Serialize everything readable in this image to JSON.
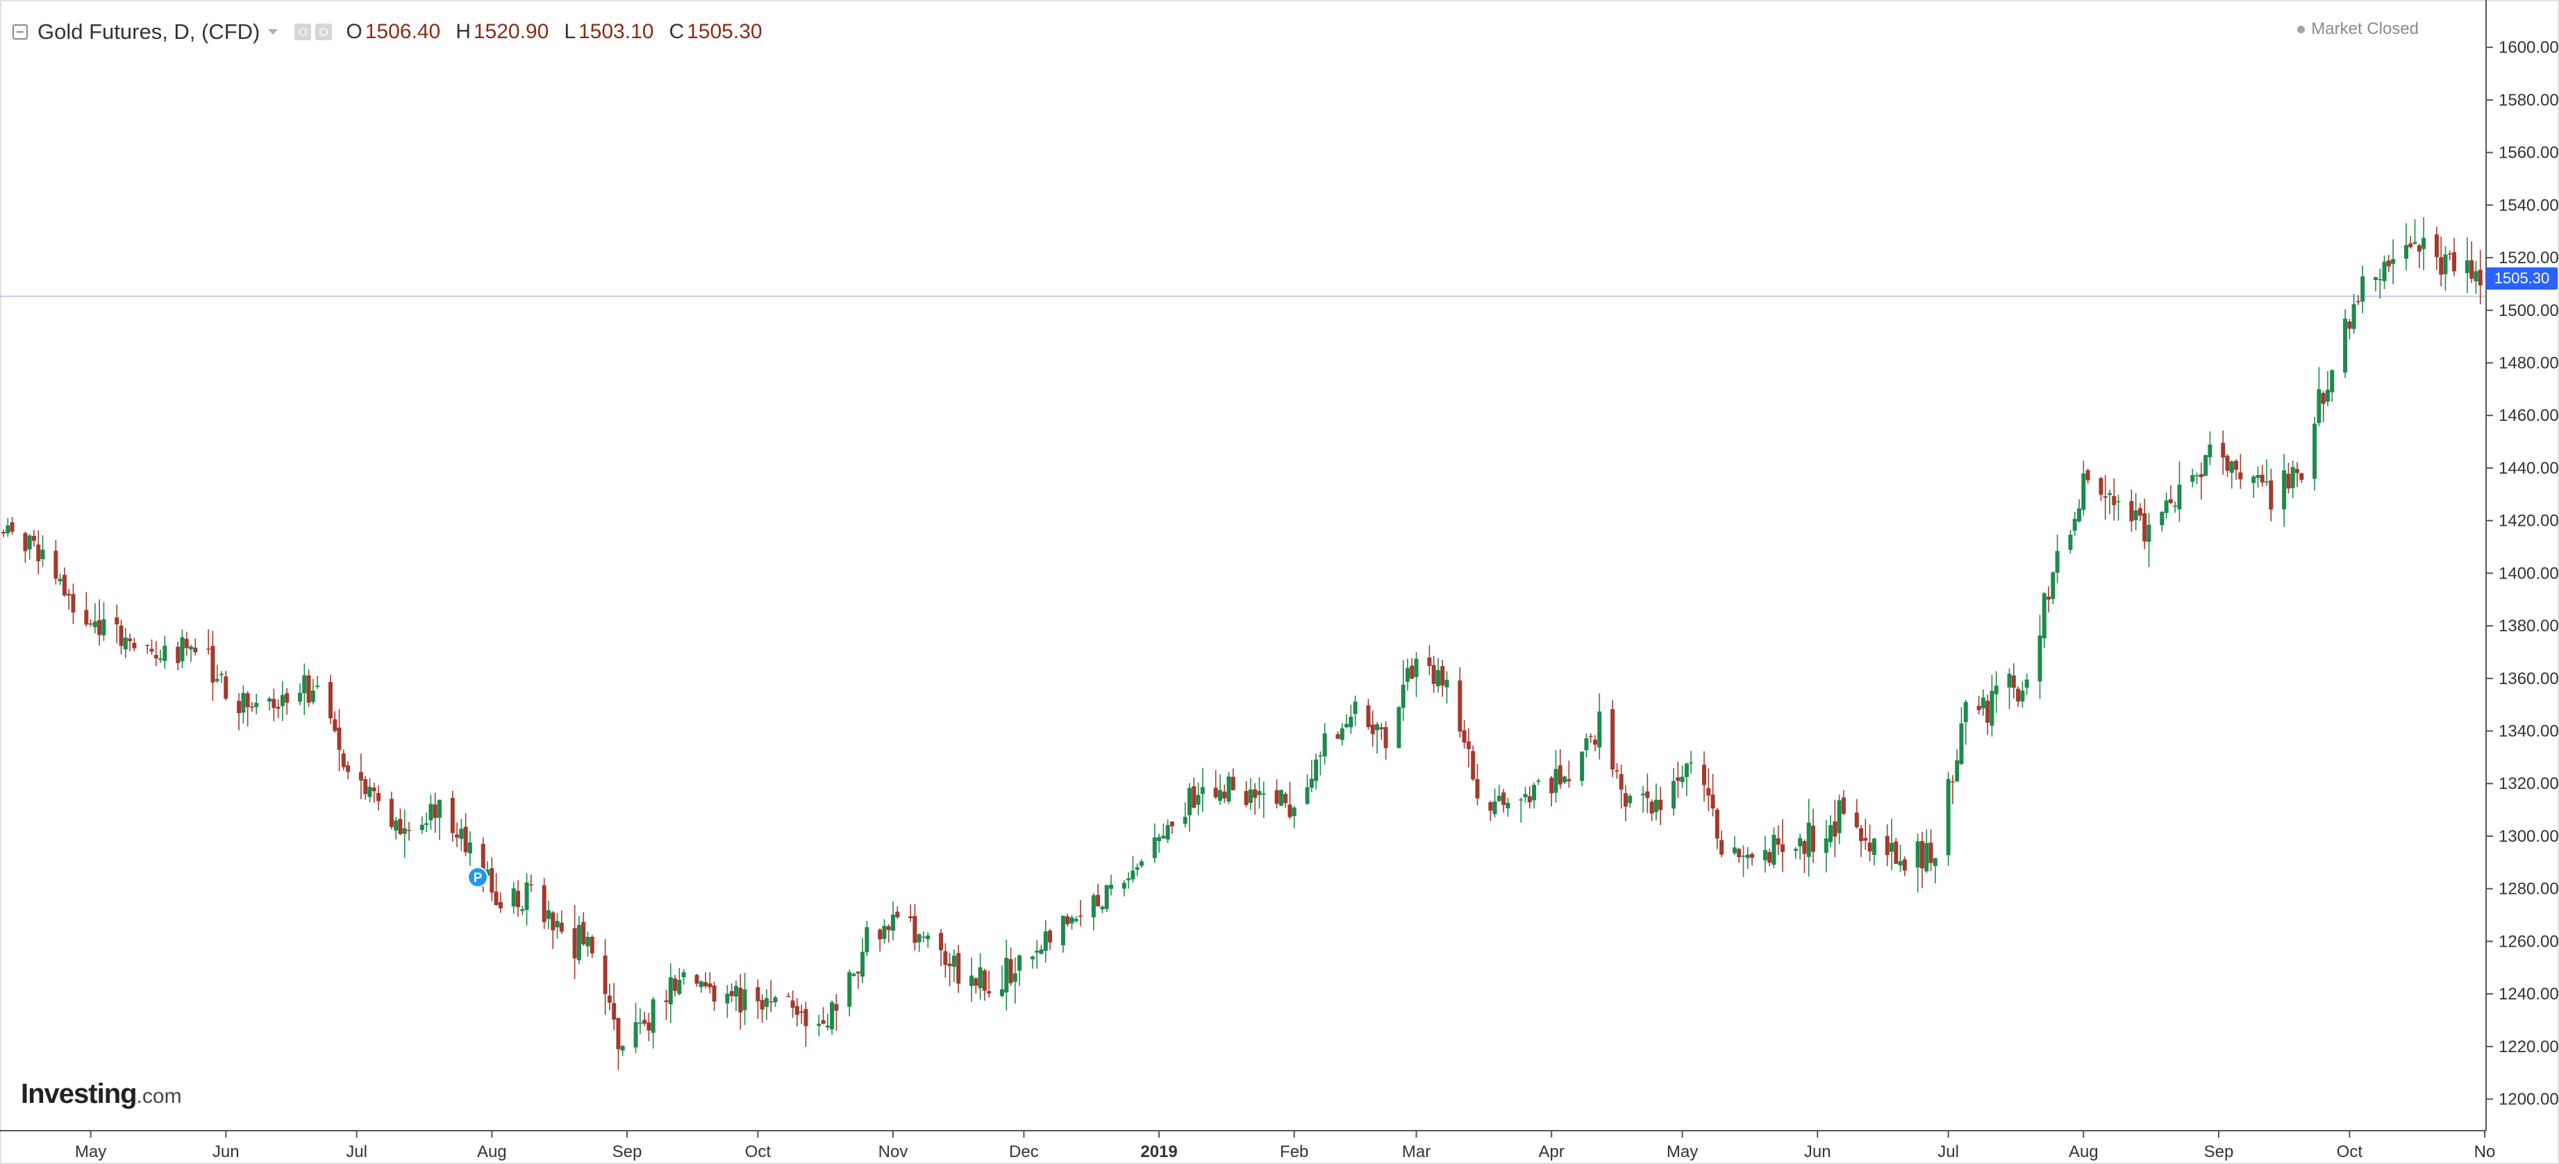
{
  "header": {
    "symbol": "Gold Futures, D, (CFD)",
    "ohlc": [
      {
        "key": "O",
        "value": "1506.40"
      },
      {
        "key": "H",
        "value": "1520.90"
      },
      {
        "key": "L",
        "value": "1503.10"
      },
      {
        "key": "C",
        "value": "1505.30"
      }
    ]
  },
  "status": {
    "market": "Market Closed"
  },
  "logo": {
    "name": "Investing",
    "suffix": ".com"
  },
  "last_price": {
    "label": "1505.30",
    "value": 1505.3,
    "line_color": "#c5cae9",
    "tag_color": "#2962ff"
  },
  "event_marker": {
    "label": "P",
    "color": "#2196f3"
  },
  "colors": {
    "up": "#26a69a",
    "up_body": "#1e8a4c",
    "down": "#a33a2e",
    "grid_axis": "#555555"
  },
  "chart_data": {
    "type": "candlestick",
    "interval": "D",
    "ylim": [
      1188,
      1618
    ],
    "y_ticks": [
      1200,
      1220,
      1240,
      1260,
      1280,
      1300,
      1320,
      1340,
      1360,
      1380,
      1400,
      1420,
      1440,
      1460,
      1480,
      1500,
      1520,
      1540,
      1560,
      1580,
      1600
    ],
    "y_tick_labels": [
      "1200.00",
      "1220.00",
      "1240.00",
      "1260.00",
      "1280.00",
      "1300.00",
      "1320.00",
      "1340.00",
      "1360.00",
      "1380.00",
      "1400.00",
      "1420.00",
      "1440.00",
      "1460.00",
      "1480.00",
      "1500.00",
      "1520.00",
      "1540.00",
      "1560.00",
      "1580.00",
      "1600.00"
    ],
    "x_range": [
      "2018-04-11",
      "2019-11-01"
    ],
    "x_ticks": [
      {
        "label": "May",
        "date": "2018-05-01",
        "bold": false
      },
      {
        "label": "Jun",
        "date": "2018-06-01",
        "bold": false
      },
      {
        "label": "Jul",
        "date": "2018-07-01",
        "bold": false
      },
      {
        "label": "Aug",
        "date": "2018-08-01",
        "bold": false
      },
      {
        "label": "Sep",
        "date": "2018-09-01",
        "bold": false
      },
      {
        "label": "Oct",
        "date": "2018-10-01",
        "bold": false
      },
      {
        "label": "Nov",
        "date": "2018-11-01",
        "bold": false
      },
      {
        "label": "Dec",
        "date": "2018-12-01",
        "bold": false
      },
      {
        "label": "2019",
        "date": "2019-01-01",
        "bold": true
      },
      {
        "label": "Feb",
        "date": "2019-02-01",
        "bold": false
      },
      {
        "label": "Mar",
        "date": "2019-03-01",
        "bold": false
      },
      {
        "label": "Apr",
        "date": "2019-04-01",
        "bold": false
      },
      {
        "label": "May",
        "date": "2019-05-01",
        "bold": false
      },
      {
        "label": "Jun",
        "date": "2019-06-01",
        "bold": false
      },
      {
        "label": "Jul",
        "date": "2019-07-01",
        "bold": false
      },
      {
        "label": "Aug",
        "date": "2019-08-01",
        "bold": false
      },
      {
        "label": "Sep",
        "date": "2019-09-01",
        "bold": false
      },
      {
        "label": "Oct",
        "date": "2019-10-01",
        "bold": false
      },
      {
        "label": "No",
        "date": "2019-11-01",
        "bold": false
      }
    ],
    "closes": [
      [
        "2018-04-11",
        1415
      ],
      [
        "2018-04-20",
        1408
      ],
      [
        "2018-04-27",
        1390
      ],
      [
        "2018-05-04",
        1378
      ],
      [
        "2018-05-11",
        1372
      ],
      [
        "2018-05-18",
        1368
      ],
      [
        "2018-05-25",
        1375
      ],
      [
        "2018-06-01",
        1352
      ],
      [
        "2018-06-08",
        1348
      ],
      [
        "2018-06-15",
        1356
      ],
      [
        "2018-06-22",
        1353
      ],
      [
        "2018-06-29",
        1322
      ],
      [
        "2018-07-06",
        1316
      ],
      [
        "2018-07-13",
        1300
      ],
      [
        "2018-07-20",
        1312
      ],
      [
        "2018-07-27",
        1295
      ],
      [
        "2018-08-03",
        1274
      ],
      [
        "2018-08-10",
        1278
      ],
      [
        "2018-08-17",
        1262
      ],
      [
        "2018-08-24",
        1258
      ],
      [
        "2018-08-31",
        1217
      ],
      [
        "2018-09-07",
        1232
      ],
      [
        "2018-09-14",
        1246
      ],
      [
        "2018-09-21",
        1238
      ],
      [
        "2018-09-28",
        1240
      ],
      [
        "2018-10-05",
        1236
      ],
      [
        "2018-10-12",
        1230
      ],
      [
        "2018-10-19",
        1232
      ],
      [
        "2018-10-26",
        1262
      ],
      [
        "2018-11-02",
        1270
      ],
      [
        "2018-11-09",
        1262
      ],
      [
        "2018-11-16",
        1250
      ],
      [
        "2018-11-23",
        1242
      ],
      [
        "2018-11-30",
        1252
      ],
      [
        "2018-12-07",
        1262
      ],
      [
        "2018-12-14",
        1272
      ],
      [
        "2018-12-21",
        1280
      ],
      [
        "2018-12-28",
        1290
      ],
      [
        "2019-01-04",
        1305
      ],
      [
        "2019-01-11",
        1318
      ],
      [
        "2019-01-18",
        1320
      ],
      [
        "2019-01-25",
        1318
      ],
      [
        "2019-02-01",
        1312
      ],
      [
        "2019-02-08",
        1335
      ],
      [
        "2019-02-15",
        1348
      ],
      [
        "2019-02-22",
        1335
      ],
      [
        "2019-03-01",
        1368
      ],
      [
        "2019-03-08",
        1354
      ],
      [
        "2019-03-15",
        1316
      ],
      [
        "2019-03-22",
        1310
      ],
      [
        "2019-03-29",
        1318
      ],
      [
        "2019-04-05",
        1325
      ],
      [
        "2019-04-12",
        1340
      ],
      [
        "2019-04-19",
        1312
      ],
      [
        "2019-04-26",
        1308
      ],
      [
        "2019-05-03",
        1330
      ],
      [
        "2019-05-10",
        1295
      ],
      [
        "2019-05-17",
        1290
      ],
      [
        "2019-05-24",
        1298
      ],
      [
        "2019-05-31",
        1300
      ],
      [
        "2019-06-07",
        1310
      ],
      [
        "2019-06-14",
        1296
      ],
      [
        "2019-06-21",
        1290
      ],
      [
        "2019-06-28",
        1296
      ],
      [
        "2019-07-05",
        1345
      ],
      [
        "2019-07-12",
        1352
      ],
      [
        "2019-07-19",
        1360
      ],
      [
        "2019-07-26",
        1405
      ],
      [
        "2019-08-02",
        1435
      ],
      [
        "2019-08-09",
        1425
      ],
      [
        "2019-08-16",
        1415
      ],
      [
        "2019-08-23",
        1430
      ],
      [
        "2019-08-30",
        1445
      ],
      [
        "2019-09-06",
        1440
      ],
      [
        "2019-09-13",
        1430
      ],
      [
        "2019-09-20",
        1440
      ],
      [
        "2019-09-27",
        1480
      ],
      [
        "2019-10-04",
        1510
      ],
      [
        "2019-10-11",
        1520
      ],
      [
        "2019-10-18",
        1525
      ],
      [
        "2019-10-25",
        1515
      ],
      [
        "2019-10-31",
        1510
      ]
    ]
  }
}
